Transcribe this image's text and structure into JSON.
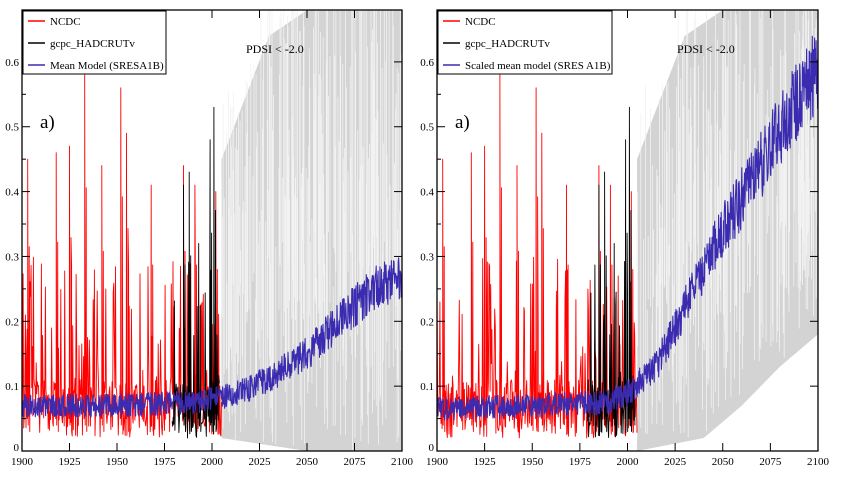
{
  "chart_data": [
    {
      "type": "line",
      "panel_label": "a)",
      "annotation": "PDSI < -2.0",
      "xlabel": "",
      "ylabel": "",
      "xlim": [
        1900,
        2100
      ],
      "ylim": [
        0,
        0.68
      ],
      "xticks": [
        1900,
        1925,
        1950,
        1975,
        2000,
        2025,
        2050,
        2075,
        2100
      ],
      "yticks": [
        0,
        0.1,
        0.2,
        0.3,
        0.4,
        0.5,
        0.6
      ],
      "ytick_labels": [
        "0",
        "0.1",
        "0.2",
        "0.3",
        "0.4",
        "0.5",
        "0.6"
      ],
      "legend": {
        "placement": "top-left",
        "entries": [
          {
            "name": "NCDC",
            "color": "#ff0000"
          },
          {
            "name": "gcpc_HADCRUTv",
            "color": "#000000"
          },
          {
            "name": "Mean Model (SRESA1B)",
            "color": "#3a2bb0"
          }
        ]
      },
      "shading": {
        "color": "#d3d3d3",
        "x_range": [
          2005,
          2100
        ],
        "lower": [
          [
            2005,
            0.02
          ],
          [
            2050,
            0.0
          ],
          [
            2100,
            0.0
          ]
        ],
        "upper": [
          [
            2005,
            0.45
          ],
          [
            2030,
            0.64
          ],
          [
            2050,
            0.68
          ],
          [
            2100,
            0.68
          ]
        ]
      },
      "series": [
        {
          "name": "NCDC",
          "color": "#ff0000",
          "x_range": [
            1900,
            2005
          ],
          "peaks": [
            [
              1903,
              0.45
            ],
            [
              1918,
              0.46
            ],
            [
              1925,
              0.47
            ],
            [
              1933,
              0.58
            ],
            [
              1942,
              0.44
            ],
            [
              1952,
              0.56
            ],
            [
              1955,
              0.49
            ],
            [
              1968,
              0.41
            ],
            [
              1985,
              0.44
            ],
            [
              1991,
              0.41
            ],
            [
              2002,
              0.4
            ]
          ]
        },
        {
          "name": "gcpc_HADCRUTv",
          "color": "#000000",
          "x_range": [
            1979,
            2004
          ],
          "peaks": [
            [
              1985,
              0.41
            ],
            [
              1988,
              0.43
            ],
            [
              1993,
              0.32
            ],
            [
              1999,
              0.48
            ],
            [
              2001,
              0.53
            ]
          ]
        },
        {
          "name": "Mean Model (SRESA1B)",
          "color": "#3a2bb0",
          "x_range": [
            1900,
            2100
          ],
          "trend": [
            [
              1900,
              0.07
            ],
            [
              1950,
              0.07
            ],
            [
              1990,
              0.075
            ],
            [
              2010,
              0.085
            ],
            [
              2030,
              0.11
            ],
            [
              2050,
              0.15
            ],
            [
              2070,
              0.21
            ],
            [
              2085,
              0.25
            ],
            [
              2100,
              0.27
            ]
          ]
        }
      ]
    },
    {
      "type": "line",
      "panel_label": "a)",
      "annotation": "PDSI < -2.0",
      "xlabel": "",
      "ylabel": "",
      "xlim": [
        1900,
        2100
      ],
      "ylim": [
        0,
        0.68
      ],
      "xticks": [
        1900,
        1925,
        1950,
        1975,
        2000,
        2025,
        2050,
        2075,
        2100
      ],
      "yticks": [
        0,
        0.1,
        0.2,
        0.3,
        0.4,
        0.5,
        0.6
      ],
      "ytick_labels": [
        "0",
        "0.1",
        "0.2",
        "0.3",
        "0.4",
        "0.5",
        "0.6"
      ],
      "legend": {
        "placement": "top-left",
        "entries": [
          {
            "name": "NCDC",
            "color": "#ff0000"
          },
          {
            "name": "gcpc_HADCRUTv",
            "color": "#000000"
          },
          {
            "name": "Scaled mean model (SRES A1B)",
            "color": "#3a2bb0"
          }
        ]
      },
      "shading": {
        "color": "#d3d3d3",
        "x_range": [
          2005,
          2100
        ],
        "lower": [
          [
            2005,
            0.0
          ],
          [
            2040,
            0.02
          ],
          [
            2060,
            0.07
          ],
          [
            2080,
            0.13
          ],
          [
            2100,
            0.18
          ]
        ],
        "upper": [
          [
            2005,
            0.45
          ],
          [
            2030,
            0.64
          ],
          [
            2050,
            0.68
          ],
          [
            2100,
            0.68
          ]
        ]
      },
      "series": [
        {
          "name": "NCDC",
          "color": "#ff0000",
          "x_range": [
            1900,
            2005
          ],
          "peaks": [
            [
              1903,
              0.45
            ],
            [
              1918,
              0.46
            ],
            [
              1925,
              0.47
            ],
            [
              1933,
              0.58
            ],
            [
              1942,
              0.44
            ],
            [
              1952,
              0.56
            ],
            [
              1955,
              0.49
            ],
            [
              1968,
              0.41
            ],
            [
              1985,
              0.44
            ],
            [
              1991,
              0.41
            ],
            [
              2002,
              0.4
            ]
          ]
        },
        {
          "name": "gcpc_HADCRUTv",
          "color": "#000000",
          "x_range": [
            1979,
            2004
          ],
          "peaks": [
            [
              1985,
              0.41
            ],
            [
              1988,
              0.43
            ],
            [
              1993,
              0.32
            ],
            [
              1999,
              0.48
            ],
            [
              2001,
              0.53
            ]
          ]
        },
        {
          "name": "Scaled mean model (SRES A1B)",
          "color": "#3a2bb0",
          "x_range": [
            1900,
            2100
          ],
          "trend": [
            [
              1900,
              0.065
            ],
            [
              1950,
              0.07
            ],
            [
              1990,
              0.075
            ],
            [
              2000,
              0.09
            ],
            [
              2015,
              0.13
            ],
            [
              2030,
              0.22
            ],
            [
              2050,
              0.34
            ],
            [
              2070,
              0.44
            ],
            [
              2085,
              0.52
            ],
            [
              2100,
              0.59
            ]
          ]
        }
      ]
    }
  ]
}
